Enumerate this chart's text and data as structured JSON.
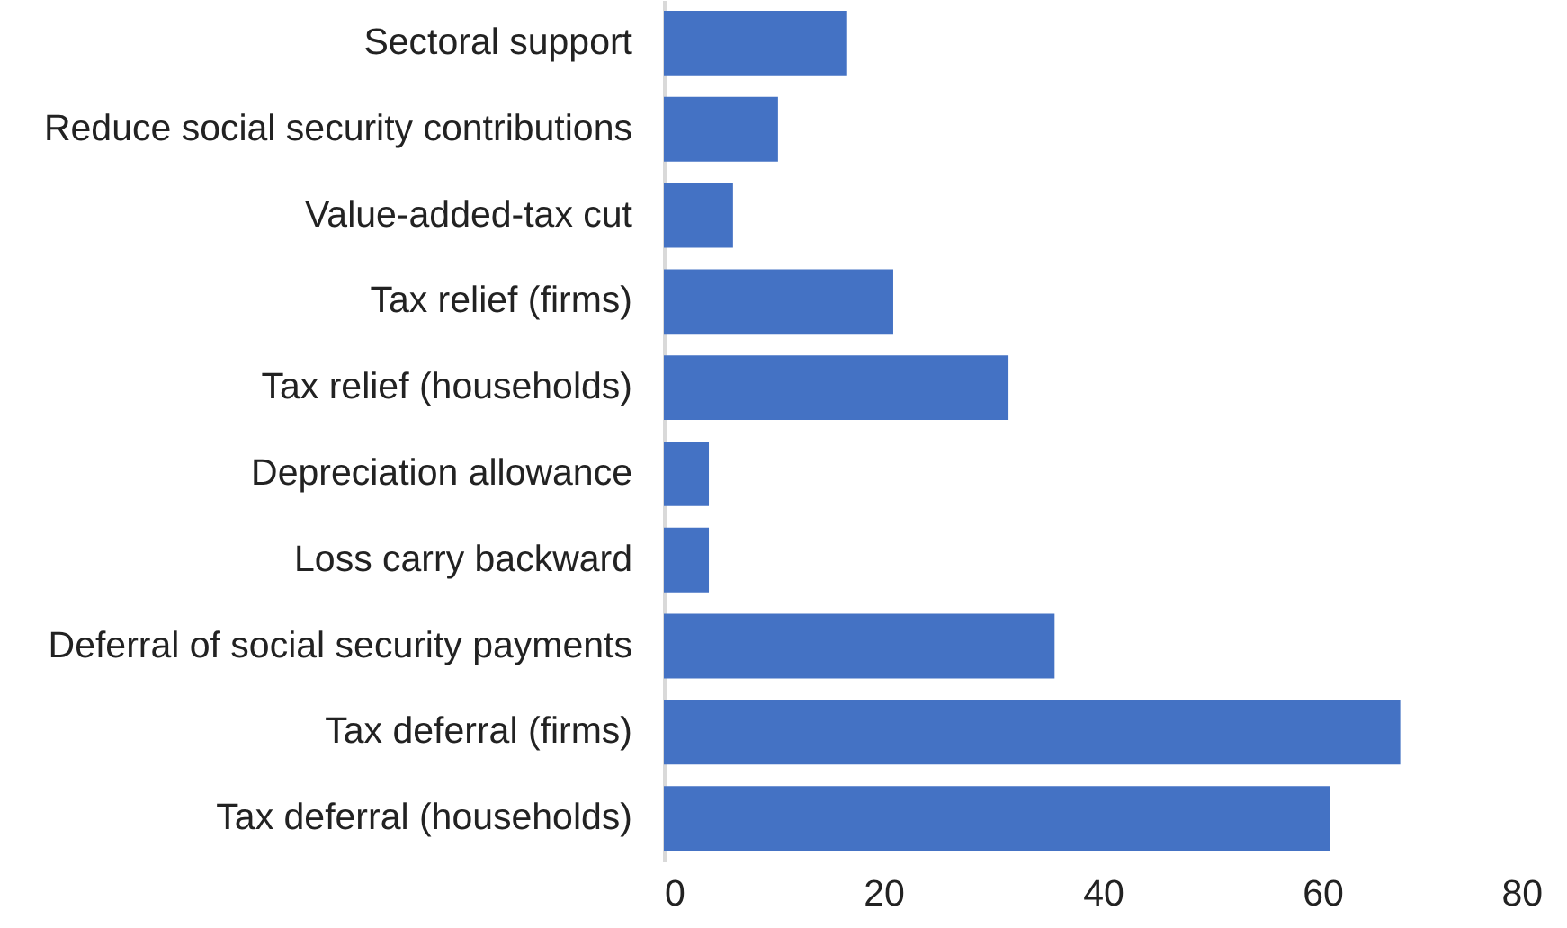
{
  "chart_data": {
    "type": "bar",
    "orientation": "horizontal",
    "categories": [
      "Sectoral support",
      "Reduce social security contributions",
      "Value-added-tax cut",
      "Tax relief (firms)",
      "Tax relief (households)",
      "Depreciation allowance",
      "Loss carry backward",
      "Deferral of social security payments",
      "Tax deferral (firms)",
      "Tax deferral (households)"
    ],
    "values": [
      16.7,
      10.4,
      6.3,
      20.9,
      31.4,
      4.1,
      4.1,
      35.6,
      67.1,
      60.7
    ],
    "color": "#4472c4",
    "xlim": [
      0,
      80
    ],
    "xticks": [
      0,
      20,
      40,
      60,
      80
    ]
  }
}
